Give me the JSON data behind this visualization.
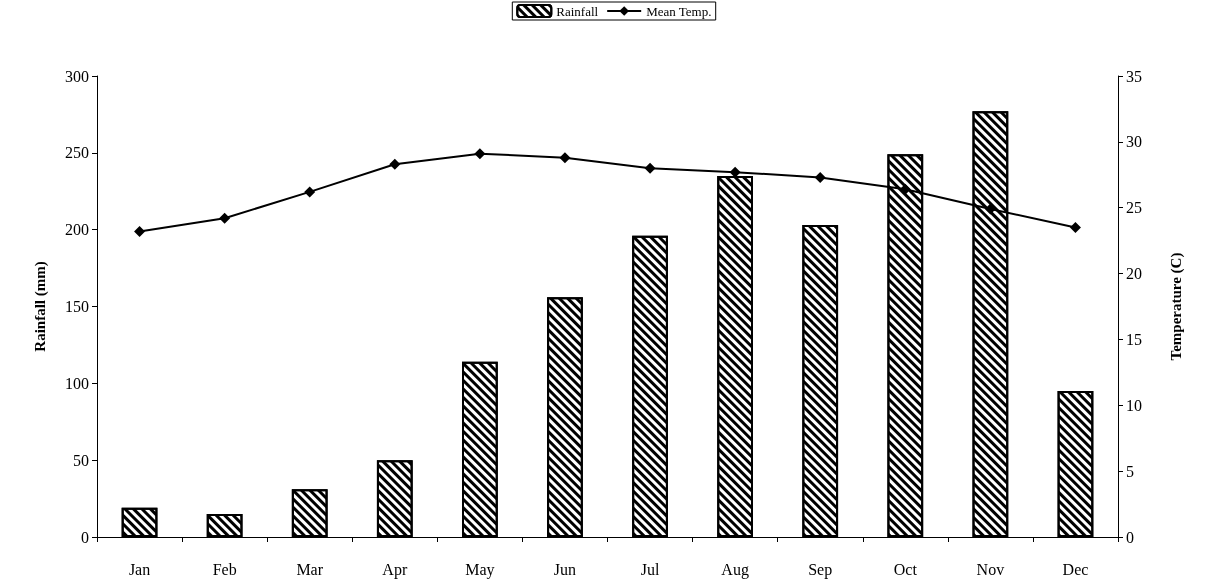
{
  "chart_data": {
    "type": "bar",
    "categories": [
      "Jan",
      "Feb",
      "Mar",
      "Apr",
      "May",
      "Jun",
      "Jul",
      "Aug",
      "Sep",
      "Oct",
      "Nov",
      "Dec"
    ],
    "series": [
      {
        "name": "Rainfall",
        "color": "#000000",
        "values": [
          19,
          15,
          31,
          50,
          114,
          156,
          196,
          235,
          203,
          249,
          277,
          95
        ]
      },
      {
        "name": "Mean Temp.",
        "type": "line",
        "axis": "y2",
        "color": "#000000",
        "marker": "diamond",
        "values": [
          23.2,
          24.2,
          26.2,
          28.3,
          29.1,
          28.8,
          28.0,
          27.7,
          27.3,
          26.4,
          24.9,
          23.5
        ]
      }
    ],
    "ylabel": "Rainfall (mm)",
    "y2label": "Temperature (C)",
    "ylim": [
      0,
      300
    ],
    "yticks": [
      0,
      50,
      100,
      150,
      200,
      250,
      300
    ],
    "y2lim": [
      0,
      35
    ],
    "y2ticks": [
      0,
      5,
      10,
      15,
      20,
      25,
      30,
      35
    ],
    "legend": "top",
    "grid": false
  }
}
